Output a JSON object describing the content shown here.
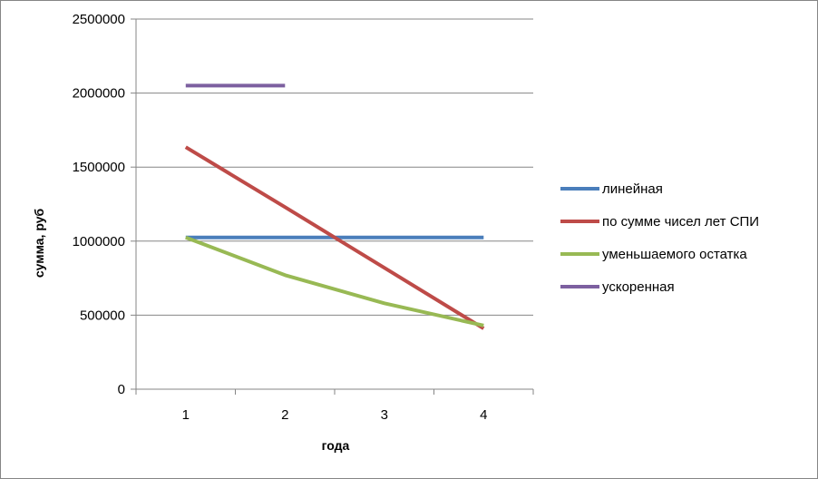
{
  "chart_data": {
    "type": "line",
    "title": "",
    "xlabel": "года",
    "ylabel": "сумма, руб",
    "categories": [
      "1",
      "2",
      "3",
      "4"
    ],
    "ylim": [
      0,
      2500000
    ],
    "yticks": [
      0,
      500000,
      1000000,
      1500000,
      2000000,
      2500000
    ],
    "ytick_labels": [
      "0",
      "500000",
      "1000000",
      "1500000",
      "2000000",
      "2500000"
    ],
    "grid": true,
    "legend_position": "right",
    "series": [
      {
        "name": "линейная",
        "color": "#4a7ebb",
        "values": [
          1025000,
          1025000,
          1025000,
          1025000
        ]
      },
      {
        "name": "по сумме чисел лет СПИ",
        "color": "#be4b48",
        "values": [
          1635000,
          1230000,
          820000,
          410000
        ]
      },
      {
        "name": "уменьшаемого остатка",
        "color": "#98b954",
        "values": [
          1025000,
          770000,
          580000,
          430000
        ]
      },
      {
        "name": "ускоренная",
        "color": "#7d60a0",
        "values": [
          2050000,
          2050000,
          null,
          null
        ]
      }
    ]
  }
}
